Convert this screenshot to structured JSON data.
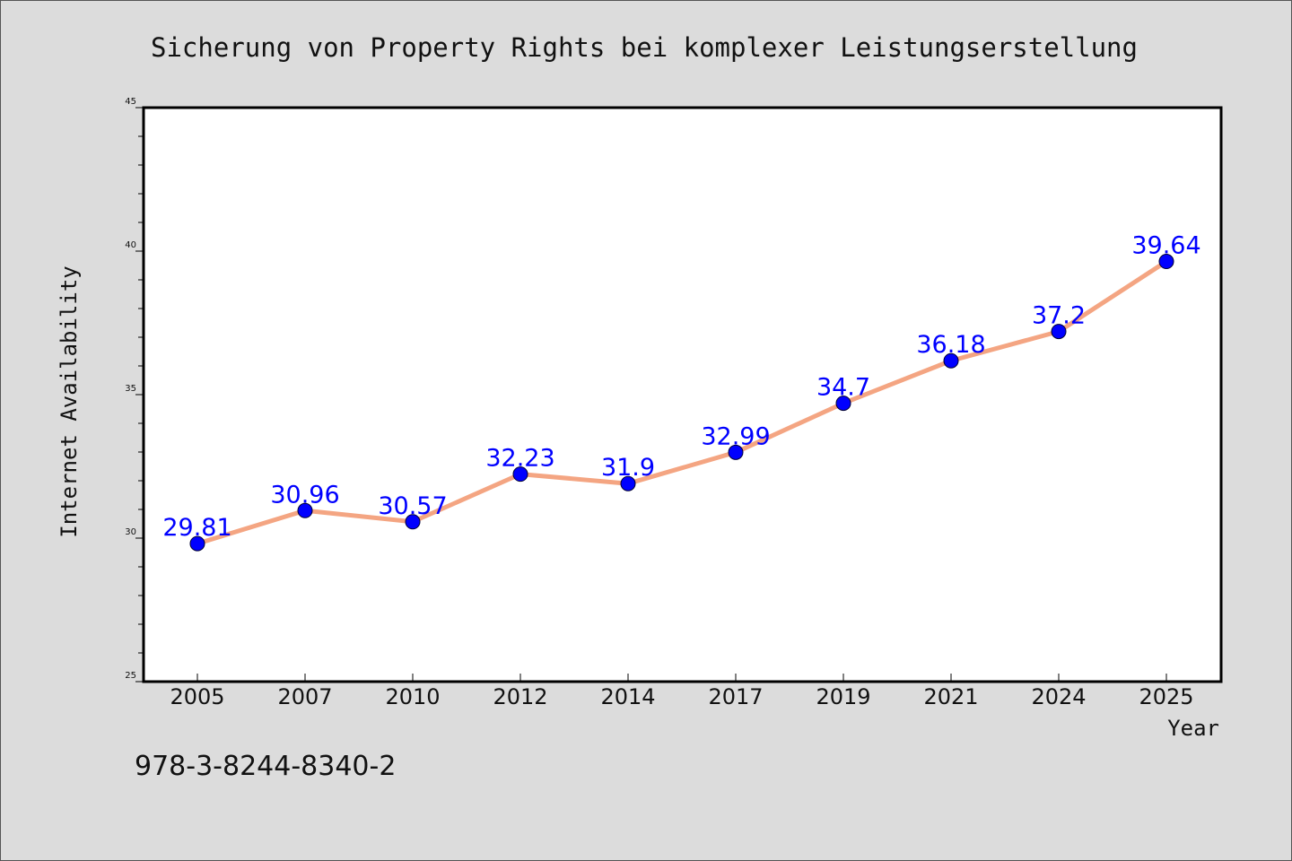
{
  "chart_data": {
    "type": "line",
    "title": "Sicherung von Property Rights bei komplexer Leistungserstellung",
    "xlabel": "Year",
    "ylabel": "Internet Availability",
    "categories": [
      "2005",
      "2007",
      "2010",
      "2012",
      "2014",
      "2017",
      "2019",
      "2021",
      "2024",
      "2025"
    ],
    "series": [
      {
        "values": [
          29.81,
          30.96,
          30.57,
          32.23,
          31.9,
          32.99,
          34.7,
          36.18,
          37.2,
          39.64
        ],
        "labels": [
          "29.81",
          "30.96",
          "30.57",
          "32.23",
          "31.9",
          "32.99",
          "34.7",
          "36.18",
          "37.2",
          "39.64"
        ],
        "line_color": "#f4a582",
        "marker_color": "#0000ff",
        "label_color": "#0000ff"
      }
    ],
    "ylim": [
      25,
      45
    ],
    "yticks": [
      "25",
      "30",
      "35",
      "40",
      "45"
    ],
    "grid": false,
    "legend": false
  },
  "footer": {
    "isbn": "978-3-8244-8340-2"
  }
}
